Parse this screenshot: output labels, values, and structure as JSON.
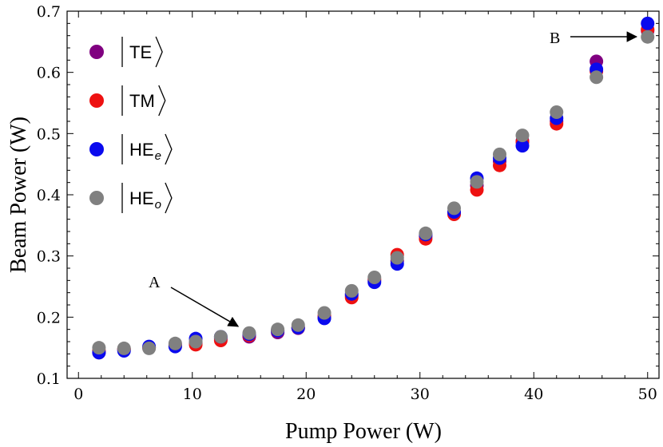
{
  "chart_data": {
    "type": "scatter",
    "xlabel": "Pump Power (W)",
    "ylabel": "Beam Power (W)",
    "xlim": [
      -1,
      51
    ],
    "ylim": [
      0.1,
      0.7
    ],
    "x_ticks": [
      0,
      10,
      20,
      30,
      40,
      50
    ],
    "y_ticks": [
      0.1,
      0.2,
      0.3,
      0.4,
      0.5,
      0.6,
      0.7
    ],
    "grid": false,
    "legend": {
      "placement": "top-left"
    },
    "x": [
      1.8,
      4.0,
      6.2,
      8.5,
      10.3,
      12.5,
      15.0,
      17.5,
      19.3,
      21.6,
      24.0,
      26.0,
      28.0,
      30.5,
      33.0,
      35.0,
      37.0,
      39.0,
      42.0,
      45.5,
      50.0
    ],
    "series": [
      {
        "name": "TE",
        "color": "#800080",
        "values": [
          0.142,
          0.147,
          0.15,
          0.155,
          0.158,
          0.165,
          0.168,
          0.175,
          0.182,
          0.2,
          0.235,
          0.26,
          0.292,
          0.332,
          0.37,
          0.415,
          0.455,
          0.488,
          0.52,
          0.618,
          0.668
        ]
      },
      {
        "name": "TM",
        "color": "#ee1111",
        "values": [
          0.145,
          0.148,
          0.15,
          0.153,
          0.155,
          0.162,
          0.17,
          0.178,
          0.183,
          0.202,
          0.232,
          0.262,
          0.302,
          0.328,
          0.368,
          0.408,
          0.448,
          0.486,
          0.516,
          0.602,
          0.67
        ]
      },
      {
        "name": "HE_e",
        "color": "#0a0aee",
        "values": [
          0.142,
          0.145,
          0.152,
          0.152,
          0.165,
          0.168,
          0.172,
          0.178,
          0.183,
          0.198,
          0.238,
          0.257,
          0.287,
          0.335,
          0.372,
          0.427,
          0.46,
          0.48,
          0.525,
          0.605,
          0.68
        ]
      },
      {
        "name": "HE_o",
        "color": "#808080",
        "values": [
          0.15,
          0.149,
          0.149,
          0.157,
          0.16,
          0.168,
          0.174,
          0.18,
          0.187,
          0.207,
          0.243,
          0.265,
          0.297,
          0.337,
          0.378,
          0.421,
          0.466,
          0.497,
          0.535,
          0.592,
          0.658
        ]
      }
    ],
    "legend_entries": [
      {
        "main": "TE",
        "sub": ""
      },
      {
        "main": "TM",
        "sub": ""
      },
      {
        "main": "HE",
        "sub": "e"
      },
      {
        "main": "HE",
        "sub": "o"
      }
    ],
    "annotations": [
      {
        "label": "A",
        "target_x": 15.0,
        "target_y": 0.172
      },
      {
        "label": "B",
        "target_x": 50.0,
        "target_y": 0.673
      }
    ]
  }
}
